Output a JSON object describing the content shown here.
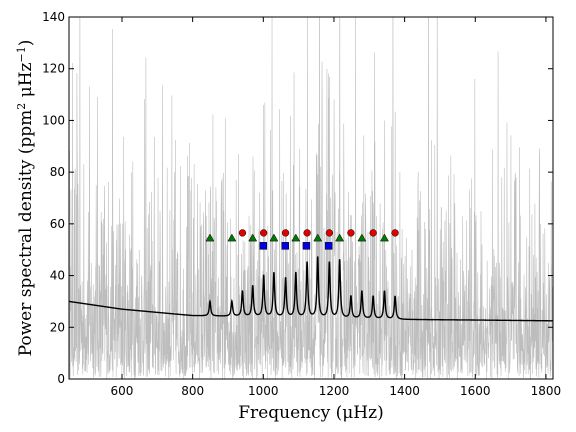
{
  "chart_data": {
    "type": "line",
    "title": "",
    "xlabel": "Frequency (μHz)",
    "ylabel_main": "Power spectral density (ppm",
    "ylabel_sup": "2",
    "ylabel_mid": "  μHz",
    "ylabel_sup2": "−1",
    "ylabel_end": ")",
    "xlim": [
      450,
      1820
    ],
    "ylim": [
      0,
      140
    ],
    "xticks": [
      600,
      800,
      1000,
      1200,
      1400,
      1600,
      1800
    ],
    "yticks": [
      0,
      20,
      40,
      60,
      80,
      100,
      120,
      140
    ],
    "grid": false,
    "colors": {
      "noise": "#bdbdbd",
      "model": "#000000",
      "triangle": "#007a00",
      "circle": "#e00000",
      "square": "#0000e0"
    },
    "background_model": {
      "x": [
        450,
        600,
        800,
        1000,
        1200,
        1400,
        1600,
        1820
      ],
      "y": [
        30,
        27,
        24.5,
        24,
        23.5,
        23,
        22.8,
        22.5
      ]
    },
    "model_peaks": [
      {
        "x": 849,
        "height": 30
      },
      {
        "x": 911,
        "height": 30
      },
      {
        "x": 941,
        "height": 34
      },
      {
        "x": 970,
        "height": 36
      },
      {
        "x": 1001,
        "height": 40
      },
      {
        "x": 1030,
        "height": 41
      },
      {
        "x": 1063,
        "height": 39
      },
      {
        "x": 1092,
        "height": 41
      },
      {
        "x": 1124,
        "height": 45
      },
      {
        "x": 1154,
        "height": 47
      },
      {
        "x": 1187,
        "height": 45
      },
      {
        "x": 1216,
        "height": 46
      },
      {
        "x": 1248,
        "height": 32
      },
      {
        "x": 1279,
        "height": 34
      },
      {
        "x": 1311,
        "height": 32
      },
      {
        "x": 1343,
        "height": 34
      },
      {
        "x": 1373,
        "height": 32
      }
    ],
    "markers": {
      "triangles": {
        "y": 54.5,
        "x": [
          849,
          911,
          970,
          1030,
          1092,
          1154,
          1216,
          1279,
          1343
        ]
      },
      "circles": {
        "y": 56.5,
        "x": [
          941,
          1001,
          1063,
          1124,
          1187,
          1248,
          1311,
          1373
        ]
      },
      "squares": {
        "y": 51.5,
        "x": [
          1000,
          1062,
          1122,
          1185
        ]
      }
    }
  }
}
